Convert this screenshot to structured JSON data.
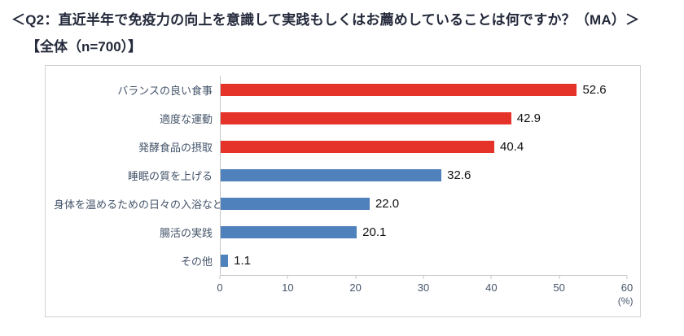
{
  "header": {
    "title_line1": "＜Q2：直近半年で免疫力の向上を意識して実践もしくはお薦めしていることは何ですか？（MA）＞",
    "title_line2": "【全体（n=700）】"
  },
  "chart_data": {
    "type": "bar",
    "orientation": "horizontal",
    "title": "",
    "categories": [
      "バランスの良い食事",
      "適度な運動",
      "発酵食品の摂取",
      "睡眠の質を上げる",
      "身体を温めるための日々の入浴など",
      "腸活の実践",
      "その他"
    ],
    "values": [
      52.6,
      42.9,
      40.4,
      32.6,
      22.0,
      20.1,
      1.1
    ],
    "bar_colors": [
      "#e5332a",
      "#e5332a",
      "#e5332a",
      "#4f81bd",
      "#4f81bd",
      "#4f81bd",
      "#4f81bd"
    ],
    "xlim": [
      0,
      60
    ],
    "xticks": [
      0,
      10,
      20,
      30,
      40,
      50,
      60
    ],
    "unit_label": "(%)",
    "grid": false,
    "legend": "none",
    "accent_colors": {
      "red": "#e5332a",
      "blue": "#4f81bd"
    }
  }
}
